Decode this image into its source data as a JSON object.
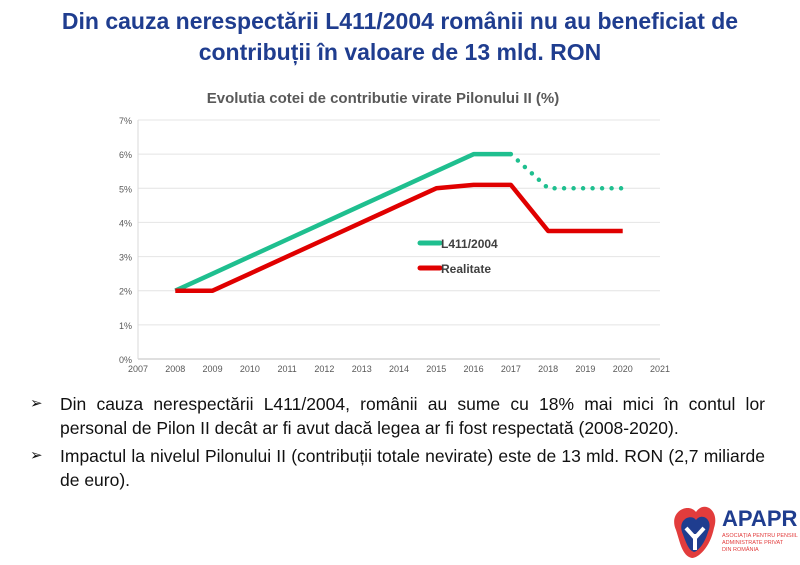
{
  "slide": {
    "title_line1": "Din cauza nerespectării L411/2004 românii nu au beneficiat de",
    "title_line2": "contribuții în valoare de 13 mld. RON"
  },
  "bullets": [
    {
      "icon": "arrow-bullet-icon",
      "text": "Din cauza nerespectării L411/2004, românii au sume cu 18% mai mici în contul lor personal de Pilon II decât ar fi avut dacă legea ar fi fost respectată (2008-2020)."
    },
    {
      "icon": "arrow-bullet-icon",
      "text": "Impactul la nivelul Pilonului II (contribuții totale nevirate) este de 13 mld. RON (2,7 miliarde de euro)."
    }
  ],
  "logo": {
    "name": "APAPR",
    "subtitle": "ASOCIAȚIA PENTRU PENSIILE ADMINISTRATE PRIVAT DIN ROMÂNIA",
    "colors": [
      "#e23c3c",
      "#1f3d8f"
    ]
  },
  "chart_data": {
    "type": "line",
    "title": "Evolutia cotei de contributie virate Pilonului II (%)",
    "xlim": [
      2007,
      2021
    ],
    "ylim": [
      0,
      7
    ],
    "xticks": [
      "2007",
      "2008",
      "2009",
      "2010",
      "2011",
      "2012",
      "2013",
      "2014",
      "2015",
      "2016",
      "2017",
      "2018",
      "2019",
      "2020",
      "2021"
    ],
    "yticks": [
      "0%",
      "1%",
      "2%",
      "3%",
      "4%",
      "5%",
      "6%",
      "7%"
    ],
    "grid": true,
    "legend_placement": "center-right",
    "series": [
      {
        "name": "L411/2004",
        "color": "#1fbf8f",
        "x": [
          2008,
          2009,
          2010,
          2011,
          2012,
          2013,
          2014,
          2015,
          2016,
          2017,
          2018,
          2019,
          2020
        ],
        "values": [
          2,
          2.5,
          3,
          3.5,
          4,
          4.5,
          5,
          5.5,
          6,
          6,
          5,
          5,
          5
        ],
        "dotted_from": 2017
      },
      {
        "name": "Realitate",
        "color": "#e00000",
        "x": [
          2008,
          2009,
          2010,
          2011,
          2012,
          2013,
          2014,
          2015,
          2016,
          2017,
          2018,
          2019,
          2020
        ],
        "values": [
          2,
          2,
          2.5,
          3,
          3.5,
          4,
          4.5,
          5,
          5.1,
          5.1,
          3.75,
          3.75,
          3.75
        ]
      }
    ]
  }
}
